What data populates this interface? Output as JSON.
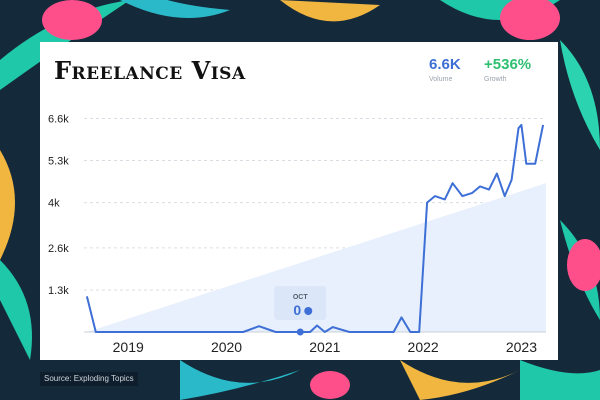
{
  "header": {
    "title": "Freelance Visa"
  },
  "stats": [
    {
      "value": "6.6K",
      "label": "Volume",
      "color": "#3d6fd6"
    },
    {
      "value": "+536%",
      "label": "Growth",
      "color": "#2fbf71"
    }
  ],
  "tooltip": {
    "month": "OCT",
    "value": "0"
  },
  "source": "Source: Exploding Topics",
  "chart_data": {
    "type": "line",
    "title": "Freelance Visa",
    "xlabel": "",
    "ylabel": "",
    "x_ticks": [
      "2019",
      "2020",
      "2021",
      "2022",
      "2023"
    ],
    "y_ticks": [
      "1.3k",
      "2.6k",
      "4k",
      "5.3k",
      "6.6k"
    ],
    "y_tick_values": [
      1300,
      2600,
      4000,
      5300,
      6600
    ],
    "xlim": [
      2018.55,
      2023.25
    ],
    "ylim": [
      0,
      6800
    ],
    "grid": true,
    "line_color": "#3d6fd6",
    "series": [
      {
        "x": [
          2018.58,
          2018.67,
          2019.0,
          2019.5,
          2019.8,
          2020.0,
          2020.17,
          2020.33,
          2020.5,
          2020.67,
          2020.75,
          2020.85,
          2020.92,
          2021.0,
          2021.08,
          2021.25,
          2021.5,
          2021.62,
          2021.7,
          2021.78,
          2021.87,
          2021.96,
          2022.04,
          2022.12,
          2022.22,
          2022.3,
          2022.4,
          2022.5,
          2022.58,
          2022.67,
          2022.75,
          2022.83,
          2022.9,
          2022.97,
          2023.0,
          2023.05,
          2023.1,
          2023.14,
          2023.18,
          2023.22
        ],
        "y": [
          1100,
          0,
          0,
          0,
          0,
          0,
          0,
          180,
          0,
          0,
          0,
          0,
          200,
          0,
          150,
          0,
          0,
          0,
          0,
          450,
          0,
          0,
          4000,
          4200,
          4100,
          4600,
          4200,
          4300,
          4500,
          4400,
          4900,
          4200,
          4700,
          6300,
          6400,
          5200,
          5200,
          5200,
          5800,
          6400
        ]
      }
    ],
    "trend_end_value": 4600
  }
}
